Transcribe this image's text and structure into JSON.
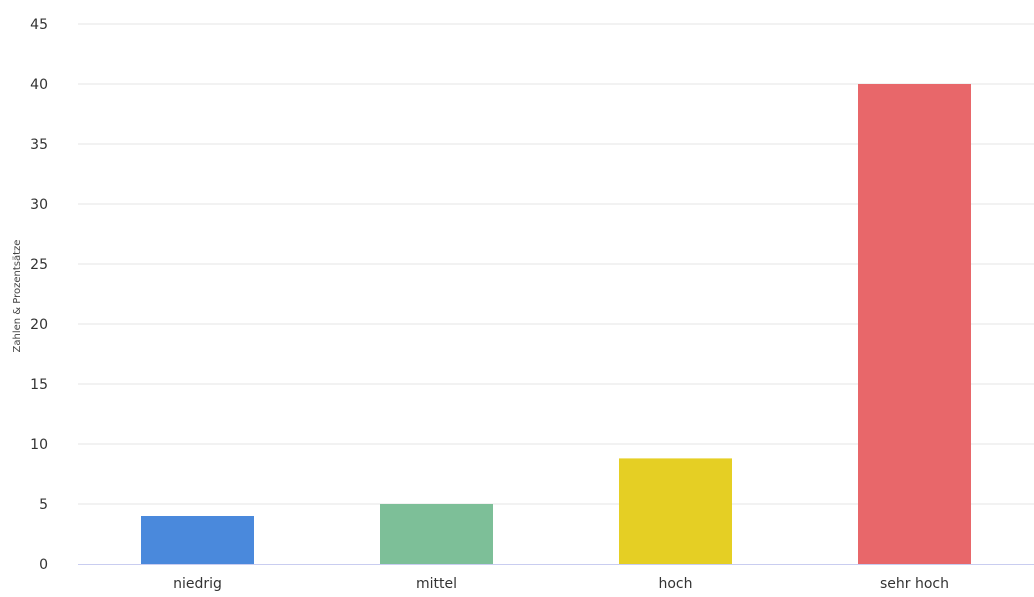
{
  "chart_data": {
    "type": "bar",
    "title": "",
    "xlabel": "",
    "ylabel": "Zahlen & Prozentsätze",
    "categories": [
      "niedrig",
      "mittel",
      "hoch",
      "sehr hoch"
    ],
    "values": [
      4,
      5,
      8.8,
      40
    ],
    "colors": [
      "#4a89dc",
      "#7dbf98",
      "#e5cf24",
      "#e8676a"
    ],
    "ylim": [
      0,
      45
    ],
    "yticks": [
      "0",
      "5",
      "10",
      "15",
      "20",
      "25",
      "30",
      "35",
      "40",
      "45"
    ],
    "grid": true,
    "legend": "none"
  }
}
